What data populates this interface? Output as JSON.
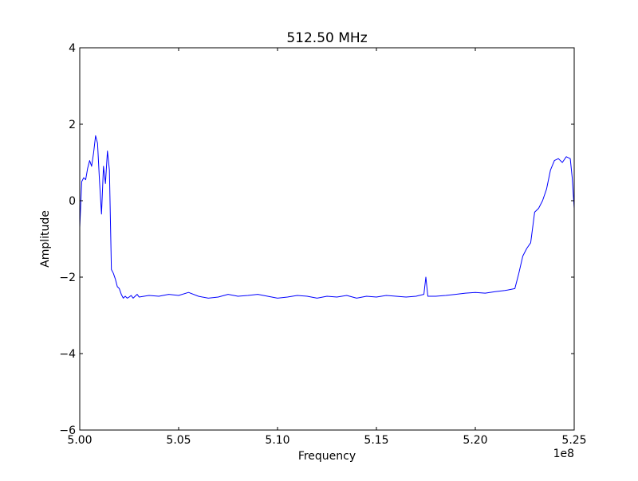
{
  "chart_data": {
    "type": "line",
    "title": "512.50 MHz",
    "xlabel": "Frequency",
    "ylabel": "Amplitude",
    "x_offset_label": "1e8",
    "xlim": [
      500000000,
      525000000
    ],
    "ylim": [
      -6,
      4
    ],
    "xticks": [
      {
        "value": 500000000,
        "label": "5.00"
      },
      {
        "value": 505000000,
        "label": "5.05"
      },
      {
        "value": 510000000,
        "label": "5.10"
      },
      {
        "value": 515000000,
        "label": "5.15"
      },
      {
        "value": 520000000,
        "label": "5.20"
      },
      {
        "value": 525000000,
        "label": "5.25"
      }
    ],
    "yticks": [
      {
        "value": -6,
        "label": "−6"
      },
      {
        "value": -4,
        "label": "−4"
      },
      {
        "value": -2,
        "label": "−2"
      },
      {
        "value": 0,
        "label": "0"
      },
      {
        "value": 2,
        "label": "2"
      },
      {
        "value": 4,
        "label": "4"
      }
    ],
    "grid": false,
    "series": [
      {
        "color": "#0000ff",
        "x": [
          500000000,
          500100000,
          500200000,
          500300000,
          500400000,
          500500000,
          500600000,
          500700000,
          500800000,
          500900000,
          501000000,
          501100000,
          501200000,
          501300000,
          501400000,
          501500000,
          501600000,
          501700000,
          501800000,
          501900000,
          502000000,
          502100000,
          502200000,
          502300000,
          502400000,
          502500000,
          502600000,
          502700000,
          502800000,
          502900000,
          503000000,
          503500000,
          504000000,
          504500000,
          505000000,
          505500000,
          506000000,
          506500000,
          507000000,
          507500000,
          508000000,
          508500000,
          509000000,
          509500000,
          510000000,
          510500000,
          511000000,
          511500000,
          512000000,
          512500000,
          513000000,
          513500000,
          514000000,
          514500000,
          515000000,
          515500000,
          516000000,
          516500000,
          517000000,
          517400000,
          517500000,
          517600000,
          518000000,
          518500000,
          519000000,
          519500000,
          520000000,
          520500000,
          521000000,
          521500000,
          522000000,
          522200000,
          522400000,
          522600000,
          522800000,
          523000000,
          523200000,
          523400000,
          523600000,
          523800000,
          524000000,
          524200000,
          524400000,
          524600000,
          524800000,
          524900000,
          525000000
        ],
        "y": [
          -0.7,
          0.5,
          0.6,
          0.55,
          0.85,
          1.05,
          0.9,
          1.25,
          1.7,
          1.5,
          0.5,
          -0.35,
          0.9,
          0.45,
          1.3,
          0.8,
          -1.8,
          -1.9,
          -2.05,
          -2.25,
          -2.3,
          -2.45,
          -2.55,
          -2.5,
          -2.55,
          -2.52,
          -2.48,
          -2.55,
          -2.5,
          -2.45,
          -2.52,
          -2.48,
          -2.5,
          -2.45,
          -2.48,
          -2.4,
          -2.5,
          -2.55,
          -2.52,
          -2.45,
          -2.5,
          -2.48,
          -2.45,
          -2.5,
          -2.55,
          -2.52,
          -2.48,
          -2.5,
          -2.55,
          -2.5,
          -2.52,
          -2.48,
          -2.55,
          -2.5,
          -2.52,
          -2.48,
          -2.5,
          -2.52,
          -2.5,
          -2.45,
          -2.0,
          -2.5,
          -2.5,
          -2.48,
          -2.45,
          -2.42,
          -2.4,
          -2.42,
          -2.38,
          -2.35,
          -2.3,
          -1.9,
          -1.45,
          -1.25,
          -1.1,
          -0.3,
          -0.2,
          0.0,
          0.3,
          0.8,
          1.05,
          1.1,
          1.0,
          1.15,
          1.1,
          0.6,
          -0.2
        ]
      }
    ]
  }
}
